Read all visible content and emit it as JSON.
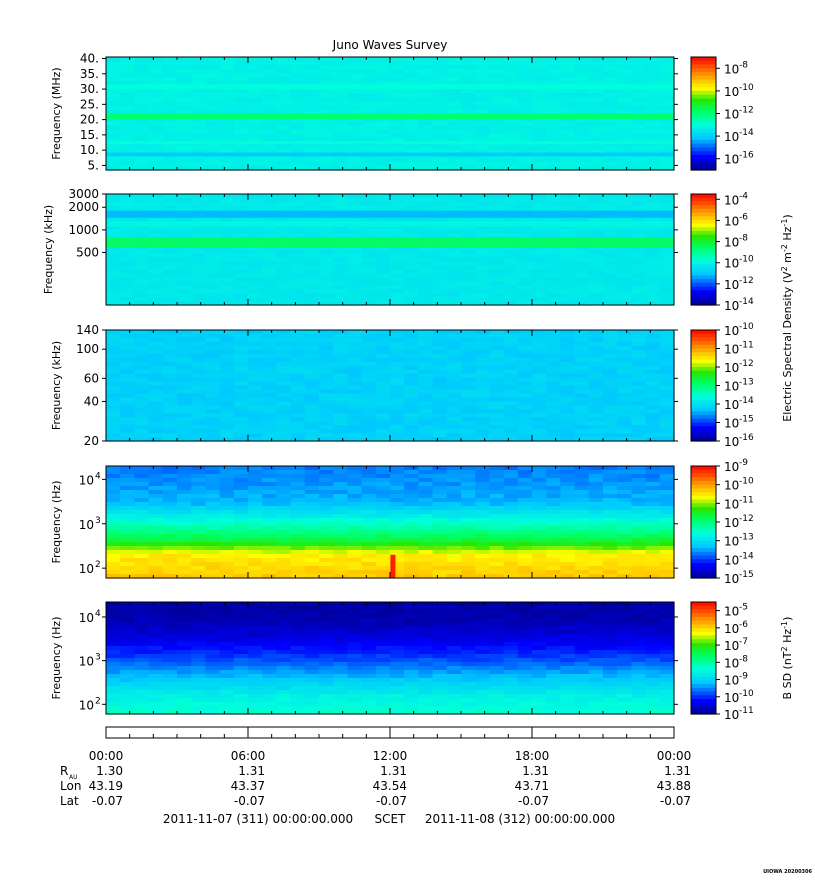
{
  "chart_data": {
    "type": "heatmap",
    "title": "Juno Waves Survey",
    "colormap": "rainbow (blue-cyan-green-yellow-orange-red)",
    "panels": [
      {
        "ylabel": "Frequency (MHz)",
        "yscale": "linear",
        "ylim": [
          3.5,
          40.5
        ],
        "yticks": [
          "5.",
          "10.",
          "15.",
          "20.",
          "25.",
          "30.",
          "35.",
          "40."
        ],
        "colorbar": {
          "exponents": [
            "-8",
            "-10",
            "-12",
            "-14",
            "-16"
          ],
          "range_log10": [
            -17,
            -7
          ]
        },
        "background_log10": -13.3,
        "bands": [
          {
            "low": 20.1,
            "high": 22.0,
            "log10": -11.8
          },
          {
            "low": 8.0,
            "high": 9.2,
            "log10": -14.2
          },
          {
            "low": 30.0,
            "high": 31.6,
            "log10": -13.0
          },
          {
            "low": 12.0,
            "high": 13.0,
            "log10": -13.0
          }
        ]
      },
      {
        "ylabel": "Frequency (kHz)",
        "yscale": "log",
        "ylim": [
          100,
          3000
        ],
        "yticks": [
          "3000",
          "2000",
          "1000",
          "500"
        ],
        "colorbar": {
          "exponents": [
            "-4",
            "-6",
            "-8",
            "-10",
            "-12",
            "-14"
          ],
          "range_log10": [
            -14,
            -3.5
          ]
        },
        "background_log10": -10.3,
        "bands": [
          {
            "low": 580,
            "high": 800,
            "log10": -8.4
          },
          {
            "low": 1450,
            "high": 1800,
            "log10": -11.2
          },
          {
            "low": 1100,
            "high": 1300,
            "log10": -10.0
          }
        ]
      },
      {
        "ylabel": "Frequency (kHz)",
        "yscale": "log",
        "ylim": [
          20,
          140
        ],
        "yticks": [
          "140",
          "100",
          "60",
          "40",
          "20"
        ],
        "colorbar": {
          "exponents": [
            "-10",
            "-11",
            "-12",
            "-13",
            "-14",
            "-15",
            "-16"
          ],
          "range_log10": [
            -16,
            -10
          ]
        },
        "background_log10": -14.2,
        "bands": []
      },
      {
        "ylabel": "Frequency (Hz)",
        "yscale": "log",
        "ylim": [
          60,
          20000
        ],
        "ytick_mantissa": "10",
        "yticks": [
          "4",
          "3",
          "2"
        ],
        "colorbar": {
          "exponents": [
            "-9",
            "-10",
            "-11",
            "-12",
            "-13",
            "-14",
            "-15"
          ],
          "range_log10": [
            -15,
            -9
          ]
        },
        "profile_log10": [
          [
            60,
            -10.3
          ],
          [
            200,
            -10.6
          ],
          [
            400,
            -11.6
          ],
          [
            1000,
            -12.5
          ],
          [
            3000,
            -13.4
          ],
          [
            20000,
            -13.7
          ]
        ],
        "burst": {
          "x_hours": 12.1,
          "low": 60,
          "high": 200,
          "log10": -9.2
        }
      },
      {
        "ylabel": "Frequency (Hz)",
        "yscale": "log",
        "ylim": [
          60,
          22000
        ],
        "ytick_mantissa": "10",
        "yticks": [
          "4",
          "3",
          "2"
        ],
        "colorbar": {
          "exponents": [
            "-5",
            "-6",
            "-7",
            "-8",
            "-9",
            "-10",
            "-11"
          ],
          "range_log10": [
            -11,
            -4.5
          ]
        },
        "profile_log10": [
          [
            60,
            -8.3
          ],
          [
            150,
            -8.6
          ],
          [
            400,
            -9.2
          ],
          [
            1000,
            -9.8
          ],
          [
            3000,
            -10.4
          ],
          [
            8000,
            -10.8
          ],
          [
            22000,
            -10.9
          ]
        ]
      }
    ],
    "colorbar_labels": {
      "efield": "Electric Spectral Density (V",
      "efield_unit_sup": [
        "2",
        "-2",
        "-1"
      ],
      "efield_parts": [
        "Electric Spectral Density (V",
        " m",
        " Hz",
        ")"
      ],
      "bfield_parts": [
        "B SD (nT",
        " Hz",
        ")"
      ],
      "bfield_unit_sup": [
        "2",
        "-1"
      ]
    },
    "x_axis": {
      "range_hours": [
        0,
        24
      ],
      "tick_labels": [
        "00:00",
        "06:00",
        "12:00",
        "18:00",
        "00:00"
      ],
      "rows": [
        {
          "label": "R",
          "subscript": "AU",
          "values": [
            "1.30",
            "1.31",
            "1.31",
            "1.31",
            "1.31"
          ]
        },
        {
          "label": "Lon",
          "values": [
            "43.19",
            "43.37",
            "43.54",
            "43.71",
            "43.88"
          ]
        },
        {
          "label": "Lat",
          "values": [
            "-0.07",
            "-0.07",
            "-0.07",
            "-0.07",
            "-0.07"
          ]
        }
      ]
    },
    "footer": {
      "start": "2011-11-07 (311) 00:00:00.000",
      "scet": "SCET",
      "end": "2011-11-08 (312) 00:00:00.000"
    },
    "stamp": "UIOWA 20200306"
  }
}
